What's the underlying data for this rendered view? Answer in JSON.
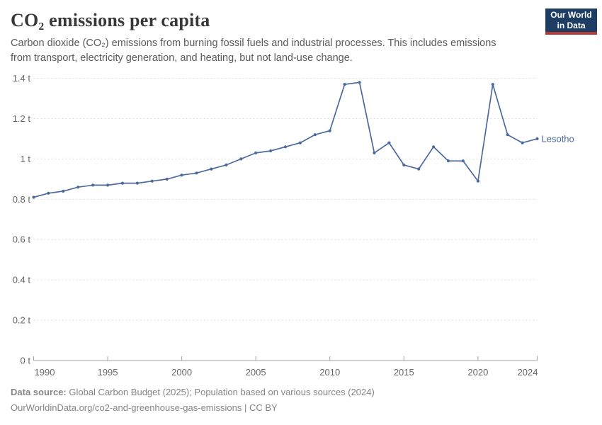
{
  "header": {
    "title": "CO₂ emissions per capita",
    "subtitle": "Carbon dioxide (CO₂) emissions from burning fossil fuels and industrial processes. This includes emissions from transport, electricity generation, and heating, but not land-use change.",
    "logo": {
      "line1": "Our World",
      "line2": "in Data"
    }
  },
  "chart_data": {
    "type": "line",
    "title": "CO₂ emissions per capita",
    "entity": "Lesotho",
    "unit": "t",
    "x": [
      1990,
      1991,
      1992,
      1993,
      1994,
      1995,
      1996,
      1997,
      1998,
      1999,
      2000,
      2001,
      2002,
      2003,
      2004,
      2005,
      2006,
      2007,
      2008,
      2009,
      2010,
      2011,
      2012,
      2013,
      2014,
      2015,
      2016,
      2017,
      2018,
      2019,
      2020,
      2021,
      2022,
      2023,
      2024
    ],
    "series": [
      {
        "name": "Lesotho",
        "color": "#4C6A9C",
        "values": [
          0.81,
          0.83,
          0.84,
          0.86,
          0.87,
          0.87,
          0.88,
          0.88,
          0.89,
          0.9,
          0.92,
          0.93,
          0.95,
          0.97,
          1.0,
          1.03,
          1.04,
          1.06,
          1.08,
          1.12,
          1.14,
          1.37,
          1.38,
          1.03,
          1.08,
          0.97,
          0.95,
          1.06,
          0.99,
          0.99,
          0.89,
          1.37,
          1.12,
          1.08,
          1.1
        ]
      }
    ],
    "xlim": [
      1990,
      2024
    ],
    "ylim": [
      0,
      1.4
    ],
    "xticks": [
      1990,
      1995,
      2000,
      2005,
      2010,
      2015,
      2020,
      2024
    ],
    "yticks": [
      0,
      0.2,
      0.4,
      0.6,
      0.8,
      1,
      1.2,
      1.4
    ],
    "ytick_labels": [
      "0 t",
      "0.2 t",
      "0.4 t",
      "0.6 t",
      "0.8 t",
      "1 t",
      "1.2 t",
      "1.4 t"
    ],
    "grid": "horizontal-dashed",
    "legend_position": "line-end-label"
  },
  "footer": {
    "source_label": "Data source:",
    "source_text": " Global Carbon Budget (2025); Population based on various sources (2024)",
    "link_text": "OurWorldinData.org/co2-and-greenhouse-gas-emissions | CC BY"
  },
  "colors": {
    "line": "#4C6A9C",
    "grid": "#dcdcdc",
    "axis": "#a3a3a3",
    "tick_text": "#666666",
    "title_text": "#383838",
    "subtitle_text": "#5a5a5a",
    "footer_text": "#858585",
    "logo_bg": "#1d3d63",
    "logo_red": "#b13b3b"
  }
}
